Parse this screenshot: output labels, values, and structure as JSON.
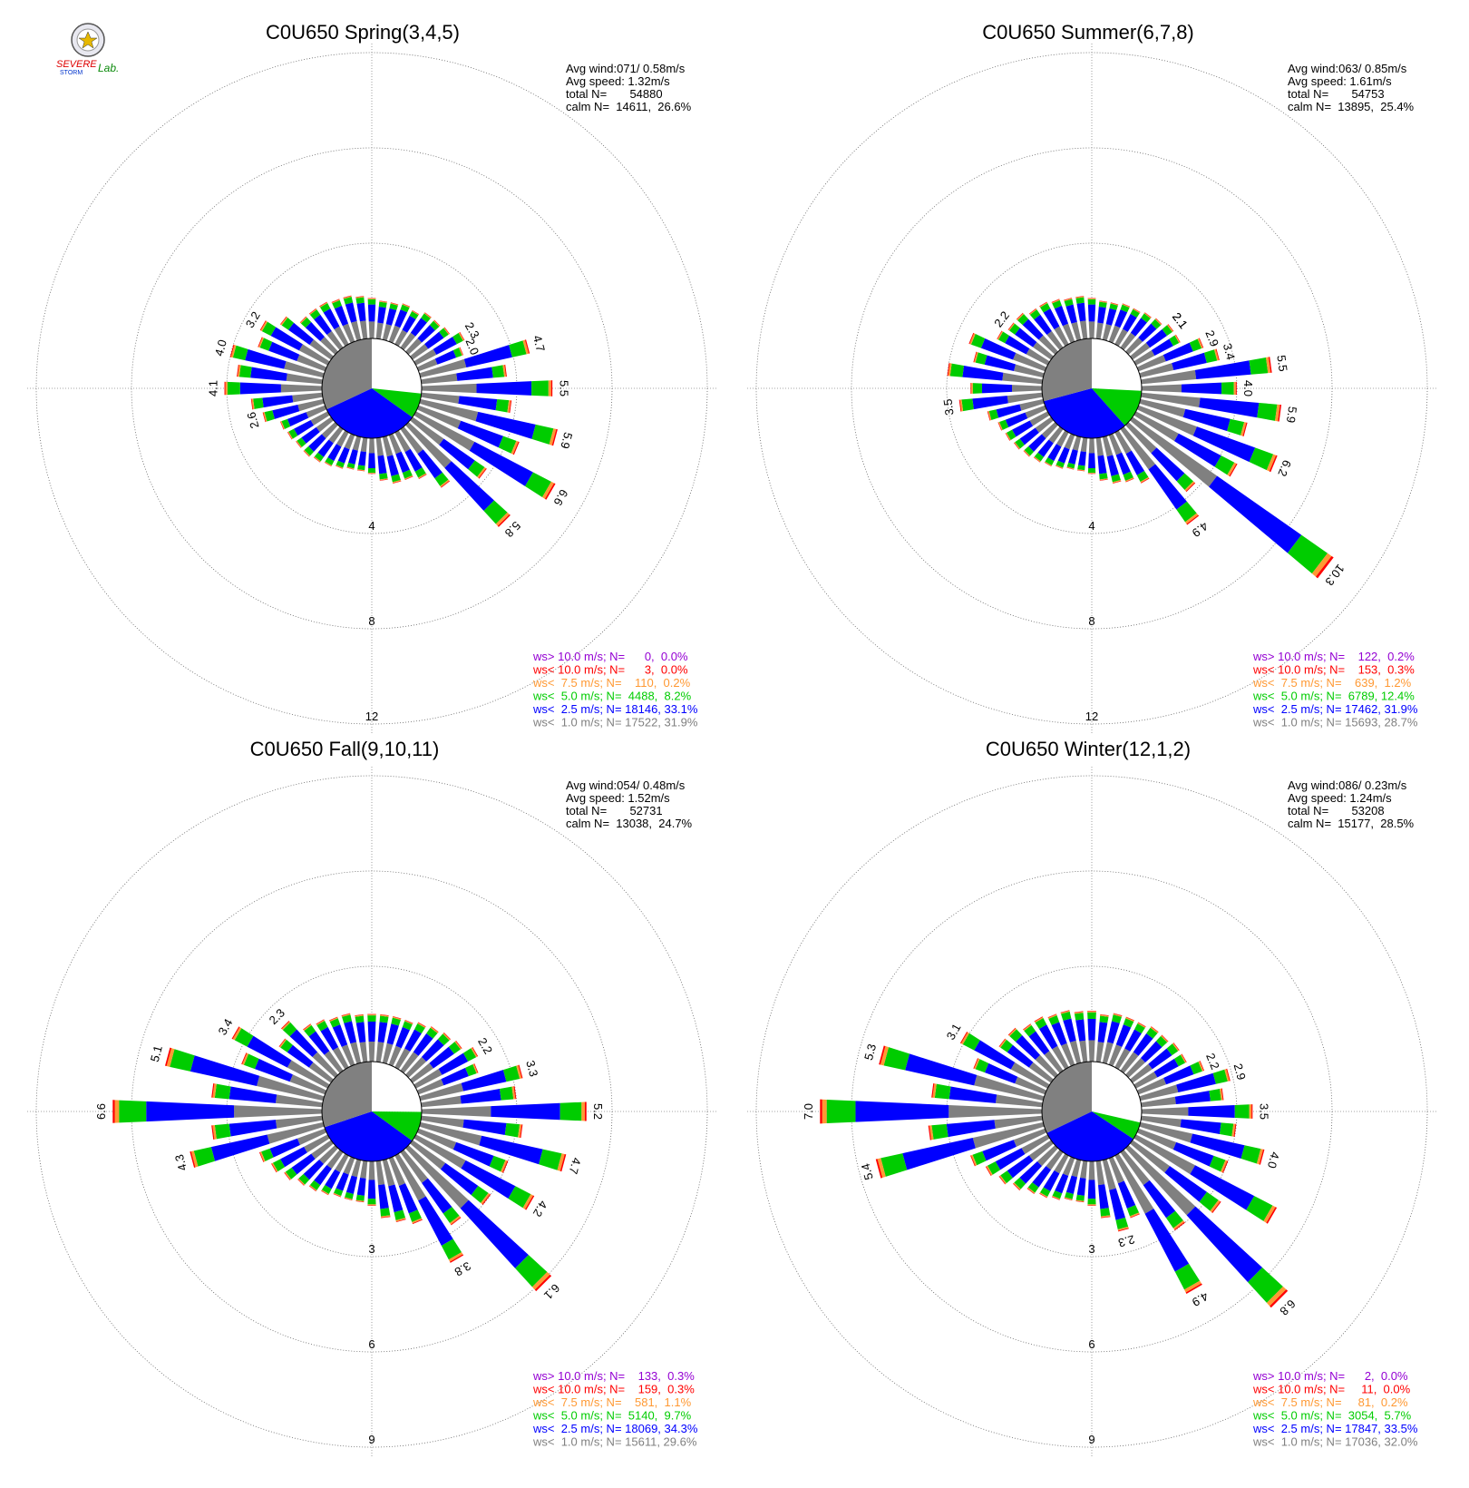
{
  "logo": {
    "name": "Severe Storm Lab logo",
    "text_line1": "SEVERE",
    "text_line2": "STORM",
    "text_line3": "Lab."
  },
  "colors": {
    "ws_gt_10": "#9400d3",
    "ws_lt_10": "#ff0000",
    "ws_lt_7_5": "#ff9933",
    "ws_lt_5": "#00cc00",
    "ws_lt_2_5": "#0000ff",
    "ws_lt_1": "#808080"
  },
  "chart_data": [
    {
      "type": "wind-rose",
      "title": "C0U650 Spring(3,4,5)",
      "info": [
        "Avg wind:071/ 0.58m/s",
        "Avg speed: 1.32m/s",
        "total N=       54880",
        "calm N=  14611,  26.6%"
      ],
      "rings": [
        4,
        8,
        12
      ],
      "ring_labels": [
        "4",
        "8",
        "12"
      ],
      "pie": {
        "calm_pct": 26.6,
        "ws_lt_1_pct": 31.9,
        "ws_lt_2_5_pct": 33.1,
        "ws_lt_5_pct": 8.2
      },
      "direction_totals": [
        1.7,
        1.6,
        1.6,
        1.7,
        1.6,
        1.8,
        1.8,
        1.9,
        2.3,
        2.0,
        4.7,
        3.6,
        5.5,
        3.8,
        5.9,
        4.5,
        6.6,
        3.8,
        5.8,
        3.0,
        2.2,
        2.0,
        2.0,
        1.8,
        1.5,
        1.4,
        1.4,
        1.5,
        1.6,
        1.7,
        1.8,
        1.8,
        1.9,
        2.0,
        2.6,
        3.0,
        4.1,
        3.6,
        4.0,
        3.0,
        3.2,
        2.6,
        2.0,
        2.0,
        2.0,
        1.9,
        1.9,
        1.8
      ],
      "direction_labels": [
        {
          "label": "2.3",
          "total": 2.3
        },
        {
          "label": "4.7",
          "total": 4.7
        },
        {
          "label": "5.5",
          "total": 5.5
        },
        {
          "label": "5.9",
          "total": 5.9
        },
        {
          "label": "6.6",
          "total": 6.6
        },
        {
          "label": "5.8",
          "total": 5.8
        },
        {
          "label": "2.6",
          "total": 2.6
        },
        {
          "label": "4.1",
          "total": 4.1
        },
        {
          "label": "4.0",
          "total": 4.0
        },
        {
          "label": "3.2",
          "total": 3.2
        },
        {
          "label": "2.0",
          "total": 2.0
        }
      ],
      "legend": [
        {
          "key": "ws_gt_10",
          "text": "ws> 10.0 m/s; N=      0,  0.0%"
        },
        {
          "key": "ws_lt_10",
          "text": "ws< 10.0 m/s; N=      3,  0.0%"
        },
        {
          "key": "ws_lt_7_5",
          "text": "ws<  7.5 m/s; N=    110,  0.2%"
        },
        {
          "key": "ws_lt_5",
          "text": "ws<  5.0 m/s; N=  4488,  8.2%"
        },
        {
          "key": "ws_lt_2_5",
          "text": "ws<  2.5 m/s; N= 18146, 33.1%"
        },
        {
          "key": "ws_lt_1",
          "text": "ws<  1.0 m/s; N= 17522, 31.9%"
        }
      ]
    },
    {
      "type": "wind-rose",
      "title": "C0U650 Summer(6,7,8)",
      "info": [
        "Avg wind:063/ 0.85m/s",
        "Avg speed: 1.61m/s",
        "total N=       54753",
        "calm N=  13895,  25.4%"
      ],
      "rings": [
        4,
        8,
        12
      ],
      "ring_labels": [
        "4",
        "8",
        "12"
      ],
      "pie": {
        "calm_pct": 25.4,
        "ws_lt_1_pct": 28.7,
        "ws_lt_2_5_pct": 31.9,
        "ws_lt_5_pct": 12.4
      },
      "direction_totals": [
        1.7,
        1.6,
        1.6,
        1.7,
        1.7,
        1.8,
        1.9,
        2.1,
        2.1,
        2.9,
        3.4,
        5.5,
        4.0,
        5.9,
        4.6,
        6.2,
        4.8,
        10.3,
        3.8,
        4.9,
        2.4,
        2.1,
        2.0,
        1.8,
        1.5,
        1.4,
        1.4,
        1.5,
        1.6,
        1.7,
        1.8,
        1.9,
        2.0,
        2.1,
        2.4,
        3.5,
        3.0,
        4.0,
        3.0,
        3.4,
        2.4,
        2.2,
        2.2,
        2.0,
        2.0,
        1.9,
        1.8,
        1.8
      ],
      "direction_labels": [
        {
          "label": "2.1",
          "total": 2.1
        },
        {
          "label": "2.9",
          "total": 2.9
        },
        {
          "label": "5.5",
          "total": 5.5
        },
        {
          "label": "5.9",
          "total": 5.9
        },
        {
          "label": "6.2",
          "total": 6.2
        },
        {
          "label": "10.3",
          "total": 10.3
        },
        {
          "label": "4.9",
          "total": 4.9
        },
        {
          "label": "2.1",
          "total": 2.1
        },
        {
          "label": "3.5",
          "total": 3.5
        },
        {
          "label": "4.0",
          "total": 4.0
        },
        {
          "label": "3.4",
          "total": 3.4
        },
        {
          "label": "2.2",
          "total": 2.2
        }
      ],
      "legend": [
        {
          "key": "ws_gt_10",
          "text": "ws> 10.0 m/s; N=    122,  0.2%"
        },
        {
          "key": "ws_lt_10",
          "text": "ws< 10.0 m/s; N=    153,  0.3%"
        },
        {
          "key": "ws_lt_7_5",
          "text": "ws<  7.5 m/s; N=    639,  1.2%"
        },
        {
          "key": "ws_lt_5",
          "text": "ws<  5.0 m/s; N=  6789, 12.4%"
        },
        {
          "key": "ws_lt_2_5",
          "text": "ws<  2.5 m/s; N= 17462, 31.9%"
        },
        {
          "key": "ws_lt_1",
          "text": "ws<  1.0 m/s; N= 15693, 28.7%"
        }
      ]
    },
    {
      "type": "wind-rose",
      "title": "C0U650 Fall(9,10,11)",
      "info": [
        "Avg wind:054/ 0.48m/s",
        "Avg speed: 1.52m/s",
        "total N=       52731",
        "calm N=  13038,  24.7%"
      ],
      "rings": [
        3,
        6,
        9
      ],
      "ring_labels": [
        "3",
        "6",
        "9"
      ],
      "pie": {
        "calm_pct": 24.7,
        "ws_lt_1_pct": 29.6,
        "ws_lt_2_5_pct": 34.3,
        "ws_lt_5_pct": 9.7
      },
      "direction_totals": [
        1.5,
        1.5,
        1.5,
        1.5,
        1.6,
        1.7,
        1.8,
        1.9,
        2.2,
        2.0,
        3.3,
        3.0,
        5.2,
        3.2,
        4.7,
        3.0,
        4.2,
        3.0,
        6.1,
        2.8,
        3.8,
        2.2,
        2.0,
        1.8,
        1.4,
        1.3,
        1.3,
        1.3,
        1.4,
        1.5,
        1.6,
        1.8,
        2.0,
        2.2,
        4.3,
        3.5,
        6.6,
        3.5,
        5.1,
        2.8,
        3.4,
        2.0,
        2.3,
        1.8,
        1.7,
        1.6,
        1.6,
        1.5
      ],
      "direction_labels": [
        {
          "label": "2.2",
          "total": 2.2
        },
        {
          "label": "3.3",
          "total": 3.3
        },
        {
          "label": "5.2",
          "total": 5.2
        },
        {
          "label": "4.7",
          "total": 4.7
        },
        {
          "label": "4.2",
          "total": 4.2
        },
        {
          "label": "6.1",
          "total": 6.1
        },
        {
          "label": "3.8",
          "total": 3.8
        },
        {
          "label": "4.3",
          "total": 4.3
        },
        {
          "label": "6.6",
          "total": 6.6
        },
        {
          "label": "5.1",
          "total": 5.1
        },
        {
          "label": "3.4",
          "total": 3.4
        },
        {
          "label": "2.3",
          "total": 2.3
        }
      ],
      "legend": [
        {
          "key": "ws_gt_10",
          "text": "ws> 10.0 m/s; N=    133,  0.3%"
        },
        {
          "key": "ws_lt_10",
          "text": "ws< 10.0 m/s; N=    159,  0.3%"
        },
        {
          "key": "ws_lt_7_5",
          "text": "ws<  7.5 m/s; N=    581,  1.1%"
        },
        {
          "key": "ws_lt_5",
          "text": "ws<  5.0 m/s; N=  5140,  9.7%"
        },
        {
          "key": "ws_lt_2_5",
          "text": "ws<  2.5 m/s; N= 18069, 34.3%"
        },
        {
          "key": "ws_lt_1",
          "text": "ws<  1.0 m/s; N= 15611, 29.6%"
        }
      ]
    },
    {
      "type": "wind-rose",
      "title": "C0U650 Winter(12,1,2)",
      "info": [
        "Avg wind:086/ 0.23m/s",
        "Avg speed: 1.24m/s",
        "total N=       53208",
        "calm N=  15177,  28.5%"
      ],
      "rings": [
        3,
        6,
        9
      ],
      "ring_labels": [
        "3",
        "6",
        "9"
      ],
      "pie": {
        "calm_pct": 28.5,
        "ws_lt_1_pct": 32.0,
        "ws_lt_2_5_pct": 33.5,
        "ws_lt_5_pct": 5.7
      },
      "direction_totals": [
        1.6,
        1.5,
        1.6,
        1.6,
        1.6,
        1.7,
        1.7,
        1.8,
        1.8,
        2.2,
        2.9,
        2.6,
        3.5,
        3.0,
        4.0,
        3.0,
        5.0,
        3.4,
        6.8,
        3.0,
        4.9,
        2.0,
        2.3,
        1.8,
        1.4,
        1.3,
        1.3,
        1.4,
        1.5,
        1.6,
        1.8,
        2.0,
        2.2,
        2.5,
        5.4,
        3.6,
        7.0,
        3.5,
        5.3,
        2.4,
        3.1,
        2.0,
        2.0,
        1.8,
        1.8,
        1.7,
        1.7,
        1.6
      ],
      "direction_labels": [
        {
          "label": "2.9",
          "total": 2.9
        },
        {
          "label": "3.5",
          "total": 3.5
        },
        {
          "label": "4.0",
          "total": 4.0
        },
        {
          "label": "6.8",
          "total": 6.8
        },
        {
          "label": "4.9",
          "total": 4.9
        },
        {
          "label": "2.3",
          "total": 2.3
        },
        {
          "label": "2.2",
          "total": 2.2
        },
        {
          "label": "5.4",
          "total": 5.4
        },
        {
          "label": "7.0",
          "total": 7.0
        },
        {
          "label": "5.3",
          "total": 5.3
        },
        {
          "label": "3.1",
          "total": 3.1
        }
      ],
      "legend": [
        {
          "key": "ws_gt_10",
          "text": "ws> 10.0 m/s; N=      2,  0.0%"
        },
        {
          "key": "ws_lt_10",
          "text": "ws< 10.0 m/s; N=     11,  0.0%"
        },
        {
          "key": "ws_lt_7_5",
          "text": "ws<  7.5 m/s; N=     81,  0.2%"
        },
        {
          "key": "ws_lt_5",
          "text": "ws<  5.0 m/s; N=  3054,  5.7%"
        },
        {
          "key": "ws_lt_2_5",
          "text": "ws<  2.5 m/s; N= 17847, 33.5%"
        },
        {
          "key": "ws_lt_1",
          "text": "ws<  1.0 m/s; N= 17036, 32.0%"
        }
      ]
    }
  ]
}
